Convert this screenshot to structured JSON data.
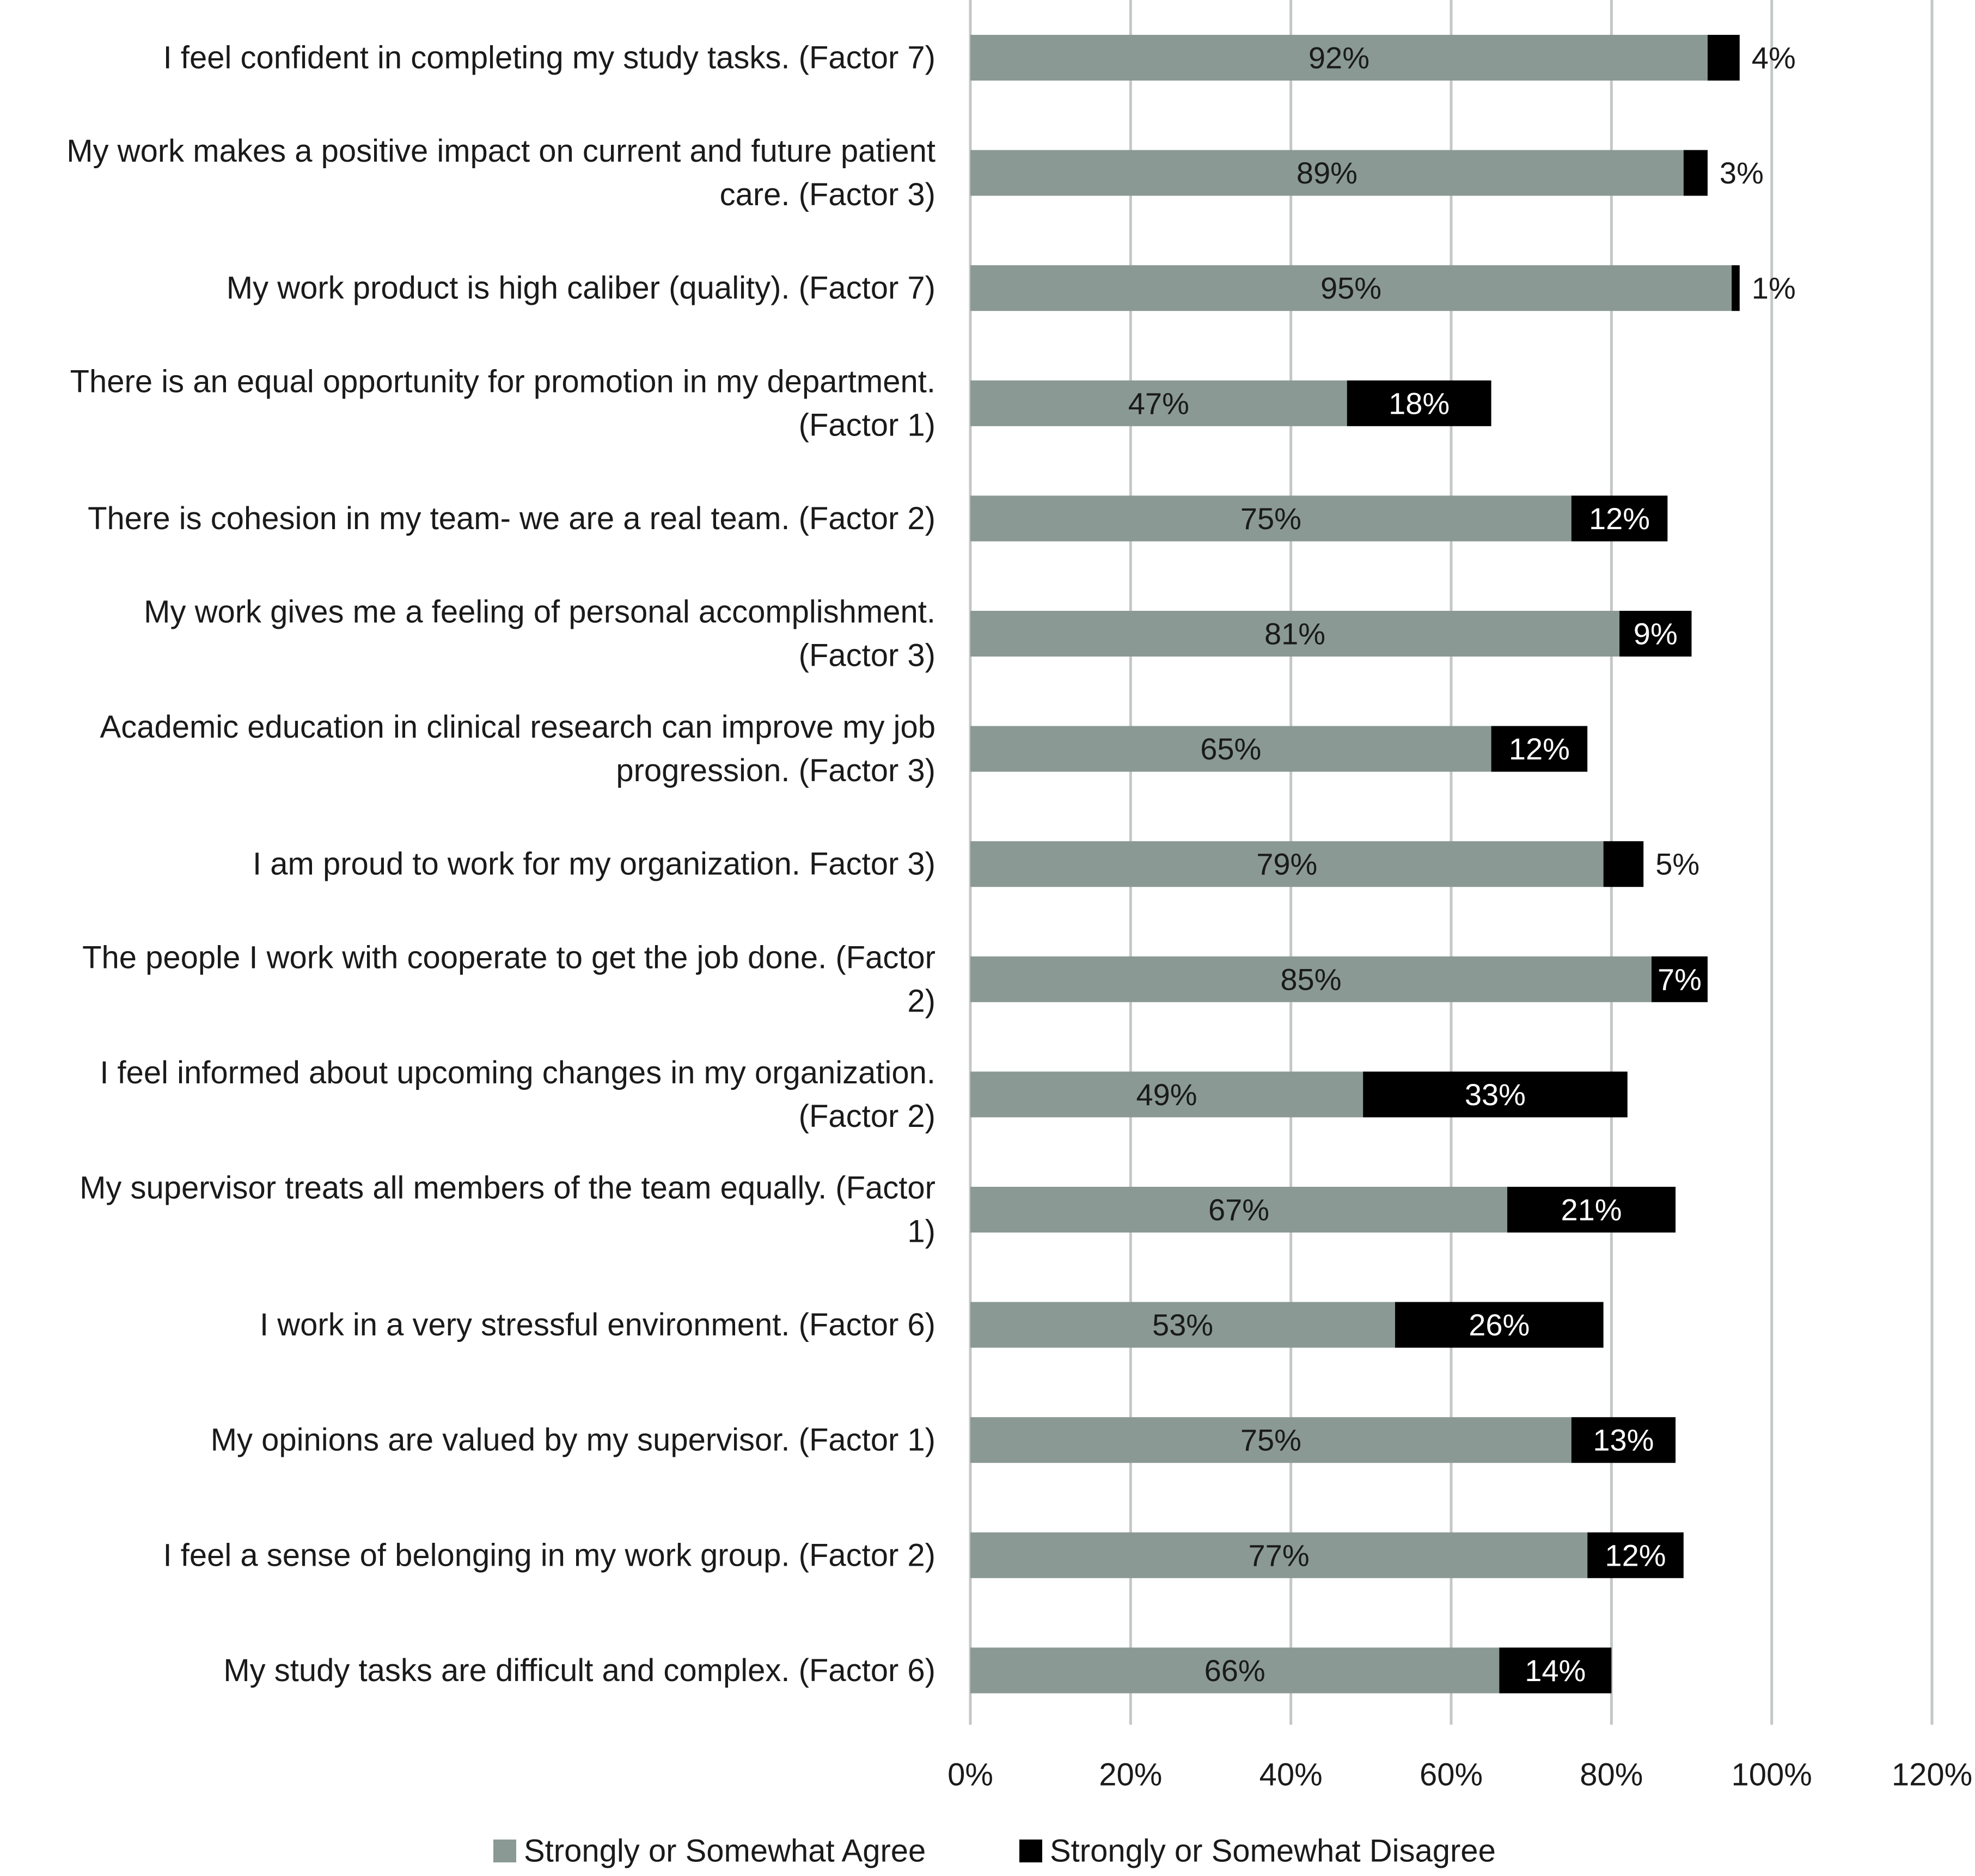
{
  "chart_data": {
    "type": "bar",
    "orientation": "horizontal",
    "stacked": true,
    "categories": [
      [
        "I feel confident in completing my study tasks. (Factor 7)"
      ],
      [
        "My work makes a positive impact on current and future patient",
        "care. (Factor 3)"
      ],
      [
        "My work product is high caliber (quality). (Factor 7)"
      ],
      [
        "There is an equal opportunity for promotion in my department.",
        "(Factor 1)"
      ],
      [
        "There is cohesion in my team- we are a real team. (Factor 2)"
      ],
      [
        "My work gives me a feeling of personal accomplishment.",
        "(Factor 3)"
      ],
      [
        "Academic education in clinical research can improve my job",
        "progression. (Factor 3)"
      ],
      [
        "I am proud to work for my organization. Factor 3)"
      ],
      [
        "The people I work with cooperate to get the job done. (Factor",
        "2)"
      ],
      [
        "I feel informed about upcoming changes in my organization.",
        "(Factor 2)"
      ],
      [
        "My supervisor treats all members of the team equally. (Factor",
        "1)"
      ],
      [
        "I work in a very stressful environment. (Factor 6)"
      ],
      [
        "My opinions are valued by my supervisor. (Factor 1)"
      ],
      [
        "I feel a sense of belonging in my work group. (Factor 2)"
      ],
      [
        "My study tasks are difficult and complex. (Factor 6)"
      ]
    ],
    "series": [
      {
        "name": "Strongly or Somewhat Agree",
        "color": "#8a9994",
        "label_color": "#1a1a1a",
        "values": [
          92,
          89,
          95,
          47,
          75,
          81,
          65,
          79,
          85,
          49,
          67,
          53,
          75,
          77,
          66
        ],
        "labels": [
          "92%",
          "89%",
          "95%",
          "47%",
          "75%",
          "81%",
          "65%",
          "79%",
          "85%",
          "49%",
          "67%",
          "53%",
          "75%",
          "77%",
          "66%"
        ]
      },
      {
        "name": "Strongly or Somewhat Disagree",
        "color": "#000000",
        "label_color": "#ffffff",
        "values": [
          4,
          3,
          1,
          18,
          12,
          9,
          12,
          5,
          7,
          33,
          21,
          26,
          13,
          12,
          14
        ],
        "labels": [
          "4%",
          "3%",
          "1%",
          "18%",
          "12%",
          "9%",
          "12%",
          "5%",
          "7%",
          "33%",
          "21%",
          "26%",
          "13%",
          "12%",
          "14%"
        ]
      }
    ],
    "xlim": [
      0,
      120
    ],
    "xticks": [
      0,
      20,
      40,
      60,
      80,
      100,
      120
    ],
    "xtick_labels": [
      "0%",
      "20%",
      "40%",
      "60%",
      "80%",
      "100%",
      "120%"
    ],
    "gridlines": true,
    "grid_color": "#c3c8c6",
    "legend_position": "bottom"
  }
}
